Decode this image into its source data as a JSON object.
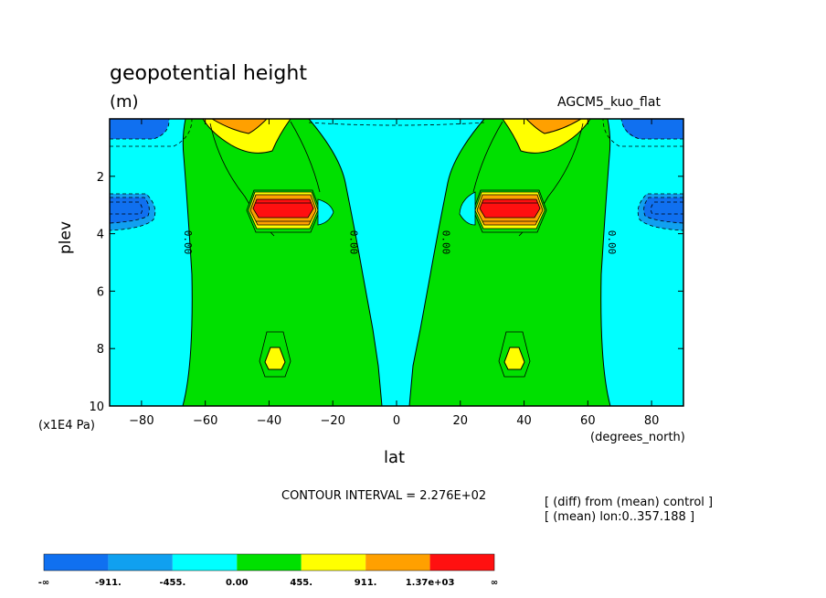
{
  "chart_data": {
    "type": "contour",
    "title": "geopotential height",
    "units_label": "(m)",
    "run_label": "AGCM5_kuo_flat",
    "xlabel": "lat",
    "x_unit": "(degrees_north)",
    "ylabel": "plev",
    "y_unit": "(x1E4 Pa)",
    "xlim": [
      -90,
      90
    ],
    "ylim": [
      0,
      10
    ],
    "y_inverted": true,
    "x_ticks": [
      "-80",
      "-60",
      "-40",
      "-20",
      "0",
      "20",
      "40",
      "60",
      "80"
    ],
    "y_ticks": [
      "2",
      "4",
      "6",
      "8",
      "10"
    ],
    "contour_interval": "CONTOUR INTERVAL = 2.276E+02",
    "notes": [
      "[ (diff) from (mean) control ]",
      "[ (mean) lon:0..357.188 ]"
    ],
    "zero_contour_labels": [
      {
        "lat": -66.5,
        "plev": 4.3,
        "text": "0.00"
      },
      {
        "lat": -14.5,
        "plev": 4.3,
        "text": "0.00"
      },
      {
        "lat": 14.5,
        "plev": 4.3,
        "text": "0.00"
      },
      {
        "lat": 66.5,
        "plev": 4.3,
        "text": "0.00"
      }
    ],
    "colorbar": {
      "levels": [
        "-∞",
        "-911.",
        "-455.",
        "0.00",
        "455.",
        "911.",
        "1.37e+03",
        "∞"
      ],
      "colors": [
        "#1070f0",
        "#10a0f0",
        "#00ffff",
        "#00e000",
        "#ffff00",
        "#ffa000",
        "#ff1010"
      ]
    },
    "regions": [
      {
        "fill": "#00e000",
        "lat": [
          -67,
          -5
        ],
        "plev": [
          0.2,
          10
        ],
        "desc": "positive lobe SH"
      },
      {
        "fill": "#00e000",
        "lat": [
          5,
          67
        ],
        "plev": [
          0.2,
          10
        ],
        "desc": "positive lobe NH"
      },
      {
        "fill": "#ff1010",
        "lat": [
          -46,
          -26
        ],
        "plev": [
          2.9,
          3.2
        ],
        "desc": "max SH near 3e4 Pa"
      },
      {
        "fill": "#ff1010",
        "lat": [
          26,
          46
        ],
        "plev": [
          2.9,
          3.2
        ],
        "desc": "max NH near 3e4 Pa"
      },
      {
        "fill": "#1070f0",
        "lat": [
          -90,
          -79
        ],
        "plev": [
          2.7,
          3.3
        ],
        "desc": "min SH"
      },
      {
        "fill": "#1070f0",
        "lat": [
          79,
          90
        ],
        "plev": [
          2.7,
          3.3
        ],
        "desc": "min NH"
      }
    ]
  }
}
